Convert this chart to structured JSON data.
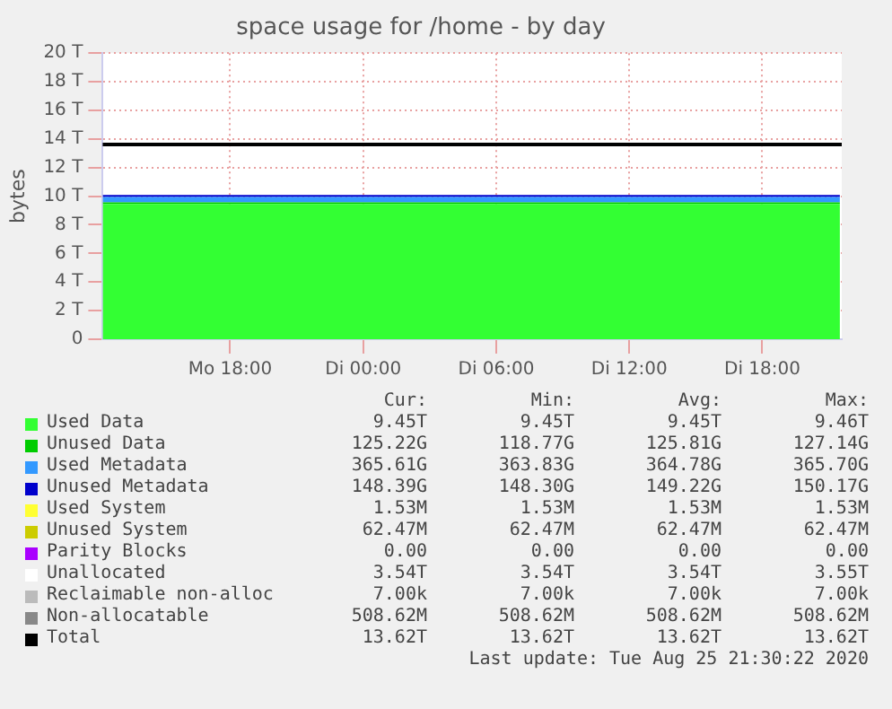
{
  "chart_data": {
    "type": "area",
    "stacked": true,
    "title": "space usage for /home - by day",
    "ylabel": "bytes",
    "x": [
      "2020-08-24T12:15",
      "2020-08-25T21:30"
    ],
    "xlim": [
      "2020-08-24T12:15",
      "2020-08-25T21:35"
    ],
    "xticks": [
      {
        "value": "2020-08-24T18:00",
        "label": "Mo 18:00"
      },
      {
        "value": "2020-08-25T00:00",
        "label": "Di 00:00"
      },
      {
        "value": "2020-08-25T06:00",
        "label": "Di 06:00"
      },
      {
        "value": "2020-08-25T12:00",
        "label": "Di 12:00"
      },
      {
        "value": "2020-08-25T18:00",
        "label": "Di 18:00"
      }
    ],
    "ylim": [
      0,
      20
    ],
    "yticks": [
      0,
      {
        "value": 2,
        "label": "2 T"
      },
      {
        "value": 4,
        "label": "4 T"
      },
      {
        "value": 6,
        "label": "6 T"
      },
      {
        "value": 8,
        "label": "8 T"
      },
      {
        "value": 10,
        "label": "10 T"
      },
      {
        "value": 12,
        "label": "12 T"
      },
      {
        "value": 14,
        "label": "14 T"
      },
      {
        "value": 16,
        "label": "16 T"
      },
      {
        "value": 18,
        "label": "18 T"
      },
      {
        "value": 20,
        "label": "20 T"
      }
    ],
    "grid": true,
    "legend": "bottom",
    "series": [
      {
        "name": "Used Data",
        "color": "#33ff33",
        "values": [
          9.45,
          9.45
        ]
      },
      {
        "name": "Unused Data",
        "color": "#00cc00",
        "values": [
          0.125,
          0.125
        ]
      },
      {
        "name": "Used Metadata",
        "color": "#3399ff",
        "values": [
          0.366,
          0.366
        ]
      },
      {
        "name": "Unused Metadata",
        "color": "#0000cc",
        "values": [
          0.148,
          0.148
        ]
      },
      {
        "name": "Used System",
        "color": "#ffff33",
        "values": [
          null,
          null
        ]
      },
      {
        "name": "Unused System",
        "color": "#cccc00",
        "values": [
          null,
          null
        ]
      },
      {
        "name": "Parity Blocks",
        "color": "#aa00ff",
        "values": [
          null,
          null
        ]
      },
      {
        "name": "Unallocated",
        "color": "#ffffff",
        "values": [
          null,
          null
        ]
      },
      {
        "name": "Reclaimable non-alloc",
        "color": "#bbbbbb",
        "values": [
          null,
          null
        ]
      },
      {
        "name": "Non-allocatable",
        "color": "#888888",
        "values": [
          null,
          null
        ]
      }
    ],
    "ref_lines": [
      {
        "axis": "y",
        "value": 13.62,
        "label": "Total",
        "color": "#000000"
      }
    ],
    "annotations": [
      "Cur:",
      "Min:",
      "Avg:",
      "Max:",
      "9.45T",
      "9.45T",
      "9.45T",
      "9.46T",
      "125.22G",
      "118.77G",
      "125.81G",
      "127.14G",
      "365.61G",
      "363.83G",
      "364.78G",
      "365.70G",
      "148.39G",
      "148.30G",
      "149.22G",
      "150.17G",
      "1.53M",
      "1.53M",
      "1.53M",
      "1.53M",
      "62.47M",
      "62.47M",
      "62.47M",
      "62.47M",
      "0.00",
      "0.00",
      "0.00",
      "0.00",
      "3.54T",
      "3.54T",
      "3.54T",
      "3.55T",
      "7.00k",
      "7.00k",
      "7.00k",
      "7.00k",
      "508.62M",
      "508.62M",
      "508.62M",
      "508.62M",
      "13.62T",
      "13.62T",
      "13.62T",
      "13.62T",
      "Last update: Tue Aug 25 21:30:22 2020"
    ]
  }
}
